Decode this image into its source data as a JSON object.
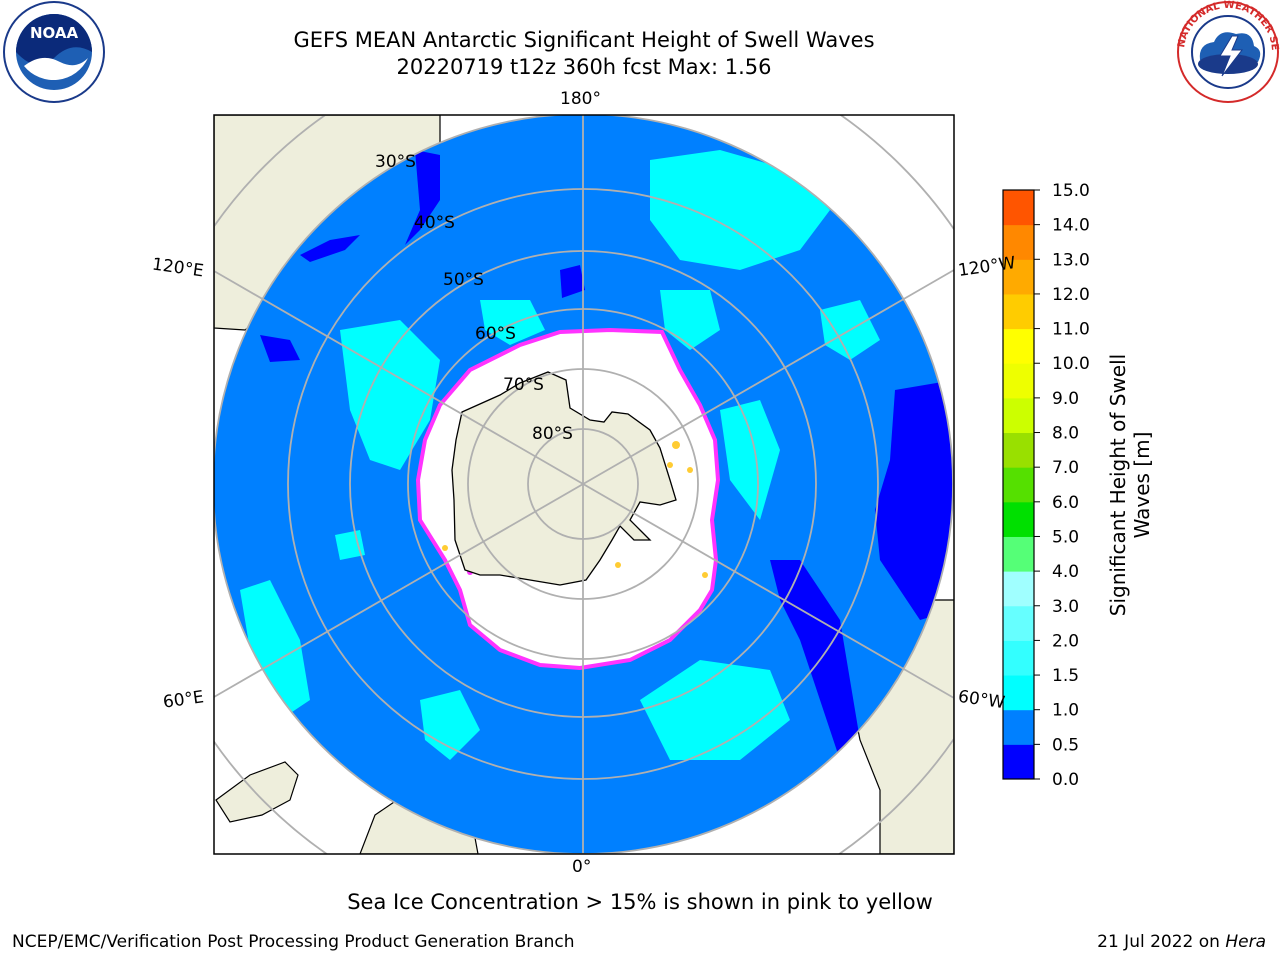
{
  "title": {
    "line1": "GEFS MEAN Antarctic Significant Height of Swell Waves",
    "line2": "20220719 t12z 360h fcst   Max: 1.56"
  },
  "logos": {
    "noaa": "noaa-logo",
    "nws": "nws-logo",
    "noaa_text": "NOAA",
    "nws_ring_text": "NATIONAL WEATHER SERVICE"
  },
  "map": {
    "projection": "south-polar-stereographic",
    "latitude_circles": [
      "30°S",
      "40°S",
      "50°S",
      "60°S",
      "70°S",
      "80°S"
    ],
    "longitude_labels": {
      "top": "180°",
      "bottom": "0°",
      "upper_left": "120°E",
      "lower_left": "60°E",
      "upper_right": "120°W",
      "lower_right": "60°W"
    },
    "colors": {
      "land": "#eeeedc",
      "ocean_base": "#0080ff",
      "low_swell": "#0000ff",
      "mid_swell": "#00ffff",
      "sea_ice": "#ffffff",
      "ice_edge": "#ff33ff",
      "ice_edge_warm": "#ffcc33",
      "gridline": "#b0b0b0"
    }
  },
  "colorbar": {
    "label_line1": "Significant Height of Swell",
    "label_line2": "Waves [m]",
    "ticks": [
      "0.0",
      "0.5",
      "1.0",
      "1.5",
      "2.0",
      "3.0",
      "4.0",
      "5.0",
      "6.0",
      "7.0",
      "8.0",
      "9.0",
      "10.0",
      "11.0",
      "12.0",
      "13.0",
      "14.0",
      "15.0"
    ],
    "colors": [
      "#0000ff",
      "#0080ff",
      "#00ffff",
      "#33ffff",
      "#66ffff",
      "#a0ffff",
      "#55ff77",
      "#00e000",
      "#55e000",
      "#99e000",
      "#ccff00",
      "#eeff00",
      "#ffff00",
      "#ffcc00",
      "#ffaa00",
      "#ff8800",
      "#ff5500",
      "#ff2200",
      "#ff0000"
    ]
  },
  "caption": "Sea Ice Concentration > 15% is shown in pink to yellow",
  "footer": {
    "left": "NCEP/EMC/Verification Post Processing Product Generation Branch",
    "right_prefix": "21 Jul 2022 on ",
    "right_host": "Hera"
  }
}
